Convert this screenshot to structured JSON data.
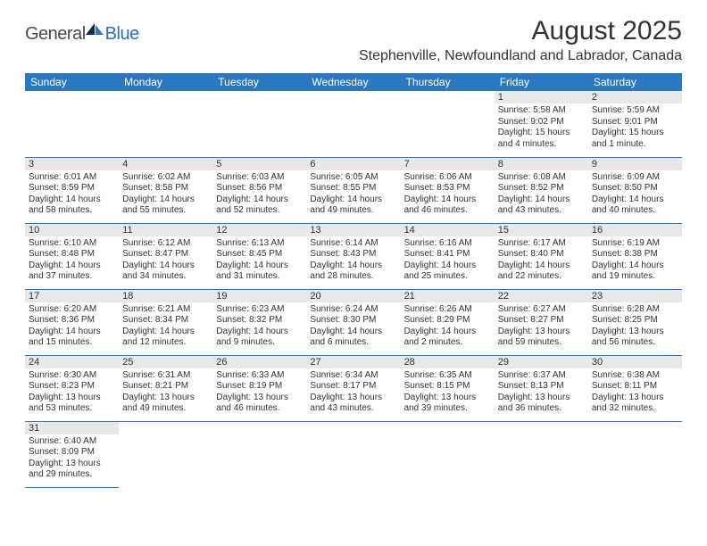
{
  "brand": {
    "general": "General",
    "blue": "Blue"
  },
  "title": "August 2025",
  "location": "Stephenville, Newfoundland and Labrador, Canada",
  "header_bg": "#2b78c0",
  "header_fg": "#ffffff",
  "daynum_bg": "#e8e8e8",
  "border_color": "#2b78c0",
  "weekdays": [
    "Sunday",
    "Monday",
    "Tuesday",
    "Wednesday",
    "Thursday",
    "Friday",
    "Saturday"
  ],
  "weeks": [
    [
      null,
      null,
      null,
      null,
      null,
      {
        "n": "1",
        "sr": "5:58 AM",
        "ss": "9:02 PM",
        "dl": "15 hours and 4 minutes."
      },
      {
        "n": "2",
        "sr": "5:59 AM",
        "ss": "9:01 PM",
        "dl": "15 hours and 1 minute."
      }
    ],
    [
      {
        "n": "3",
        "sr": "6:01 AM",
        "ss": "8:59 PM",
        "dl": "14 hours and 58 minutes."
      },
      {
        "n": "4",
        "sr": "6:02 AM",
        "ss": "8:58 PM",
        "dl": "14 hours and 55 minutes."
      },
      {
        "n": "5",
        "sr": "6:03 AM",
        "ss": "8:56 PM",
        "dl": "14 hours and 52 minutes."
      },
      {
        "n": "6",
        "sr": "6:05 AM",
        "ss": "8:55 PM",
        "dl": "14 hours and 49 minutes."
      },
      {
        "n": "7",
        "sr": "6:06 AM",
        "ss": "8:53 PM",
        "dl": "14 hours and 46 minutes."
      },
      {
        "n": "8",
        "sr": "6:08 AM",
        "ss": "8:52 PM",
        "dl": "14 hours and 43 minutes."
      },
      {
        "n": "9",
        "sr": "6:09 AM",
        "ss": "8:50 PM",
        "dl": "14 hours and 40 minutes."
      }
    ],
    [
      {
        "n": "10",
        "sr": "6:10 AM",
        "ss": "8:48 PM",
        "dl": "14 hours and 37 minutes."
      },
      {
        "n": "11",
        "sr": "6:12 AM",
        "ss": "8:47 PM",
        "dl": "14 hours and 34 minutes."
      },
      {
        "n": "12",
        "sr": "6:13 AM",
        "ss": "8:45 PM",
        "dl": "14 hours and 31 minutes."
      },
      {
        "n": "13",
        "sr": "6:14 AM",
        "ss": "8:43 PM",
        "dl": "14 hours and 28 minutes."
      },
      {
        "n": "14",
        "sr": "6:16 AM",
        "ss": "8:41 PM",
        "dl": "14 hours and 25 minutes."
      },
      {
        "n": "15",
        "sr": "6:17 AM",
        "ss": "8:40 PM",
        "dl": "14 hours and 22 minutes."
      },
      {
        "n": "16",
        "sr": "6:19 AM",
        "ss": "8:38 PM",
        "dl": "14 hours and 19 minutes."
      }
    ],
    [
      {
        "n": "17",
        "sr": "6:20 AM",
        "ss": "8:36 PM",
        "dl": "14 hours and 15 minutes."
      },
      {
        "n": "18",
        "sr": "6:21 AM",
        "ss": "8:34 PM",
        "dl": "14 hours and 12 minutes."
      },
      {
        "n": "19",
        "sr": "6:23 AM",
        "ss": "8:32 PM",
        "dl": "14 hours and 9 minutes."
      },
      {
        "n": "20",
        "sr": "6:24 AM",
        "ss": "8:30 PM",
        "dl": "14 hours and 6 minutes."
      },
      {
        "n": "21",
        "sr": "6:26 AM",
        "ss": "8:29 PM",
        "dl": "14 hours and 2 minutes."
      },
      {
        "n": "22",
        "sr": "6:27 AM",
        "ss": "8:27 PM",
        "dl": "13 hours and 59 minutes."
      },
      {
        "n": "23",
        "sr": "6:28 AM",
        "ss": "8:25 PM",
        "dl": "13 hours and 56 minutes."
      }
    ],
    [
      {
        "n": "24",
        "sr": "6:30 AM",
        "ss": "8:23 PM",
        "dl": "13 hours and 53 minutes."
      },
      {
        "n": "25",
        "sr": "6:31 AM",
        "ss": "8:21 PM",
        "dl": "13 hours and 49 minutes."
      },
      {
        "n": "26",
        "sr": "6:33 AM",
        "ss": "8:19 PM",
        "dl": "13 hours and 46 minutes."
      },
      {
        "n": "27",
        "sr": "6:34 AM",
        "ss": "8:17 PM",
        "dl": "13 hours and 43 minutes."
      },
      {
        "n": "28",
        "sr": "6:35 AM",
        "ss": "8:15 PM",
        "dl": "13 hours and 39 minutes."
      },
      {
        "n": "29",
        "sr": "6:37 AM",
        "ss": "8:13 PM",
        "dl": "13 hours and 36 minutes."
      },
      {
        "n": "30",
        "sr": "6:38 AM",
        "ss": "8:11 PM",
        "dl": "13 hours and 32 minutes."
      }
    ],
    [
      {
        "n": "31",
        "sr": "6:40 AM",
        "ss": "8:09 PM",
        "dl": "13 hours and 29 minutes."
      },
      null,
      null,
      null,
      null,
      null,
      null
    ]
  ],
  "labels": {
    "sunrise": "Sunrise:",
    "sunset": "Sunset:",
    "daylight": "Daylight:"
  }
}
